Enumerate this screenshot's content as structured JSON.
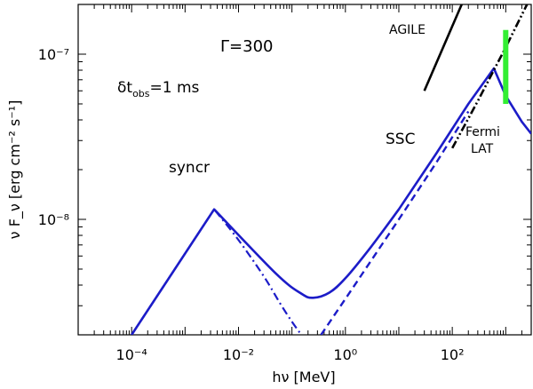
{
  "chart_data": {
    "type": "line",
    "title": "",
    "xlabel": "hν [MeV]",
    "ylabel": "ν F_ν [erg cm⁻² s⁻¹]",
    "x_scale": "log",
    "y_scale": "log",
    "xlim": [
      1e-05,
      3000
    ],
    "ylim": [
      2e-09,
      2e-07
    ],
    "x_ticks": [
      {
        "value": 0.0001,
        "label": "10⁻⁴"
      },
      {
        "value": 0.01,
        "label": "10⁻²"
      },
      {
        "value": 1,
        "label": "10⁰"
      },
      {
        "value": 100,
        "label": "10²"
      }
    ],
    "y_ticks": [
      {
        "value": 1e-08,
        "label": "10⁻⁸"
      },
      {
        "value": 1e-07,
        "label": "10⁻⁷"
      }
    ],
    "annotations": {
      "gamma": "Γ=300",
      "dt_symbol": "δt",
      "dt_sub": "obs",
      "dt_value": "=1 ms",
      "syncr": "syncr",
      "ssc": "SSC",
      "agile": "AGILE",
      "fermi": "Fermi",
      "lat": "LAT"
    },
    "colors": {
      "model": "#1c1cc8",
      "gamma_text": "#3a3ad8",
      "agile": "#000000",
      "lat_band": "#33ee33",
      "axes": "#000000"
    },
    "series": [
      {
        "name": "total",
        "style": "solid",
        "x": [
          0.0001,
          0.0035,
          0.05,
          0.15,
          0.25,
          0.5,
          1,
          3,
          10,
          50,
          200,
          600,
          1000,
          2000,
          3000
        ],
        "y": [
          2e-09,
          1.15e-08,
          4.7e-09,
          3.55e-09,
          3.35e-09,
          3.6e-09,
          4.4e-09,
          6.8e-09,
          1.15e-08,
          2.5e-08,
          5e-08,
          8.2e-08,
          5.6e-08,
          3.9e-08,
          3.3e-08
        ]
      },
      {
        "name": "syncr",
        "style": "dashdot",
        "x": [
          0.0001,
          0.0035,
          0.01,
          0.03,
          0.06,
          0.1,
          0.15
        ],
        "y": [
          2e-09,
          1.15e-08,
          7.5e-09,
          4.5e-09,
          3.1e-09,
          2.4e-09,
          2e-09
        ]
      },
      {
        "name": "SSC",
        "style": "dashed",
        "x": [
          0.35,
          1,
          3,
          10,
          50,
          200
        ],
        "y": [
          2e-09,
          3.3e-09,
          5.6e-09,
          1e-08,
          2.2e-08,
          4.5e-08
        ]
      },
      {
        "name": "AGILE",
        "style": "solid-black",
        "x": [
          30,
          150
        ],
        "y": [
          6e-08,
          2e-07
        ]
      },
      {
        "name": "Fermi LAT",
        "style": "dashdotdot-black",
        "x": [
          100,
          300,
          1000,
          2500
        ],
        "y": [
          2.7e-08,
          5.2e-08,
          1.1e-07,
          2e-07
        ]
      },
      {
        "name": "LAT band",
        "style": "vertical-bar",
        "x": [
          1000,
          1000
        ],
        "y": [
          5e-08,
          1.4e-07
        ]
      }
    ]
  }
}
